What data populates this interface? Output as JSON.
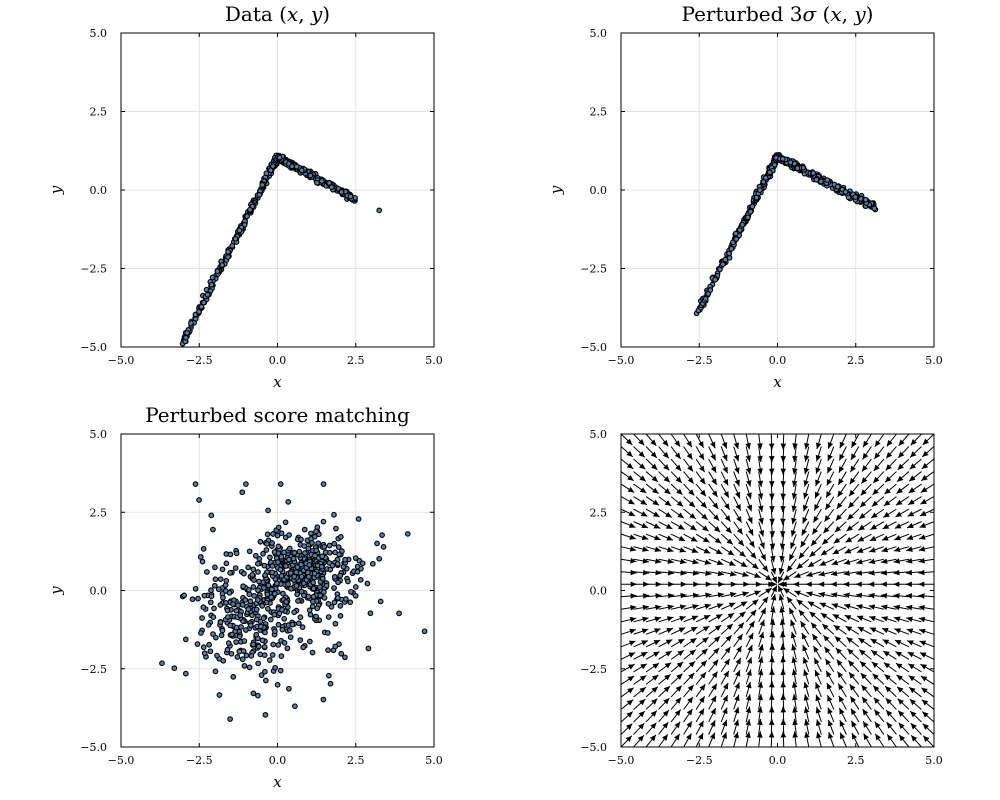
{
  "figure": {
    "background": "#ffffff",
    "marker_fill": "#5b7fa6",
    "marker_edge": "#000000",
    "grid_color": "#e4e4e4"
  },
  "chart_data": [
    {
      "id": "data",
      "type": "scatter",
      "title": "Data (x, y)",
      "title_parts": [
        {
          "text": "Data (",
          "italic": false
        },
        {
          "text": "x",
          "italic": true
        },
        {
          "text": ", ",
          "italic": false
        },
        {
          "text": "y",
          "italic": true
        },
        {
          "text": ")",
          "italic": false
        }
      ],
      "xlabel": "x",
      "ylabel": "y",
      "xlim": [
        -5,
        5
      ],
      "ylim": [
        -5,
        5
      ],
      "xticks": [
        -5,
        -2.5,
        0,
        2.5,
        5
      ],
      "yticks": [
        -5,
        -2.5,
        0,
        2.5,
        5
      ],
      "xtick_labels": [
        "−5.0",
        "−2.5",
        "0.0",
        "2.5",
        "5.0"
      ],
      "ytick_labels": [
        "−5.0",
        "−2.5",
        "0.0",
        "2.5",
        "5.0"
      ],
      "grid": true,
      "show_xlabel": true,
      "show_ylabel": true,
      "distribution": {
        "shape": "two-arm",
        "vertex": [
          0,
          1.05
        ],
        "left_arm": {
          "x_range": [
            -3.1,
            0
          ],
          "y_range": [
            -5,
            1.05
          ],
          "count": 260
        },
        "right_arm": {
          "x_range": [
            0,
            2.5
          ],
          "y_range": [
            -0.3,
            1.05
          ],
          "count": 230
        },
        "outliers": [
          [
            3.25,
            -0.65
          ]
        ]
      }
    },
    {
      "id": "perturbed",
      "type": "scatter",
      "title": "Perturbed 3σ (x, y)",
      "title_parts": [
        {
          "text": "Perturbed 3",
          "italic": false
        },
        {
          "text": "σ",
          "italic": true
        },
        {
          "text": " (",
          "italic": false
        },
        {
          "text": "x",
          "italic": true
        },
        {
          "text": ", ",
          "italic": false
        },
        {
          "text": "y",
          "italic": true
        },
        {
          "text": ")",
          "italic": false
        }
      ],
      "xlabel": "x",
      "ylabel": "y",
      "xlim": [
        -5,
        5
      ],
      "ylim": [
        -5,
        5
      ],
      "xticks": [
        -5,
        -2.5,
        0,
        2.5,
        5
      ],
      "yticks": [
        -5,
        -2.5,
        0,
        2.5,
        5
      ],
      "xtick_labels": [
        "−5.0",
        "−2.5",
        "0.0",
        "2.5",
        "5.0"
      ],
      "ytick_labels": [
        "−5.0",
        "−2.5",
        "0.0",
        "2.5",
        "5.0"
      ],
      "grid": true,
      "show_xlabel": true,
      "show_ylabel": true,
      "distribution": {
        "shape": "two-arm",
        "vertex": [
          0,
          1.05
        ],
        "left_arm": {
          "x_range": [
            -2.55,
            0
          ],
          "y_range": [
            -3.9,
            1.05
          ],
          "count": 250
        },
        "right_arm": {
          "x_range": [
            0,
            3.2
          ],
          "y_range": [
            -0.6,
            1.05
          ],
          "count": 250
        },
        "outliers": []
      }
    },
    {
      "id": "score-matching",
      "type": "scatter",
      "title": "Perturbed score matching",
      "title_parts": [
        {
          "text": "Perturbed score matching",
          "italic": false
        }
      ],
      "xlabel": "x",
      "ylabel": "y",
      "xlim": [
        -5,
        5
      ],
      "ylim": [
        -5,
        5
      ],
      "xticks": [
        -5,
        -2.5,
        0,
        2.5,
        5
      ],
      "yticks": [
        -5,
        -2.5,
        0,
        2.5,
        5
      ],
      "xtick_labels": [
        "−5.0",
        "−2.5",
        "0.0",
        "2.5",
        "5.0"
      ],
      "ytick_labels": [
        "−5.0",
        "−2.5",
        "0.0",
        "2.5",
        "5.0"
      ],
      "grid": true,
      "show_xlabel": true,
      "show_ylabel": true,
      "distribution": {
        "shape": "clusters",
        "clusters": [
          {
            "center": [
              0.8,
              0.7
            ],
            "spread": [
              0.75,
              0.6
            ],
            "count": 330
          },
          {
            "center": [
              -1.0,
              -0.9
            ],
            "spread": [
              0.8,
              0.9
            ],
            "count": 200
          },
          {
            "center": [
              0.2,
              -0.2
            ],
            "spread": [
              1.6,
              1.5
            ],
            "count": 220
          }
        ],
        "x_range": [
          -3.9,
          4.7
        ],
        "y_range": [
          -4.7,
          3.4
        ]
      }
    },
    {
      "id": "score-field",
      "type": "quiver",
      "title": "",
      "title_parts": [],
      "xlabel": "",
      "ylabel": "",
      "xlim": [
        -5,
        5
      ],
      "ylim": [
        -5,
        5
      ],
      "xticks": [
        -5,
        -2.5,
        0,
        2.5,
        5
      ],
      "yticks": [
        -5,
        -2.5,
        0,
        2.5,
        5
      ],
      "xtick_labels": [
        "−5.0",
        "−2.5",
        "0.0",
        "2.5",
        "5.0"
      ],
      "ytick_labels": [
        "−5.0",
        "−2.5",
        "0.0",
        "2.5",
        "5.0"
      ],
      "grid": false,
      "show_xlabel": false,
      "show_ylabel": false,
      "field": {
        "grid_n": 26,
        "range": [
          -5,
          5
        ],
        "converges_to": [
          0,
          0.2
        ],
        "arrow_length": 0.5
      }
    }
  ]
}
